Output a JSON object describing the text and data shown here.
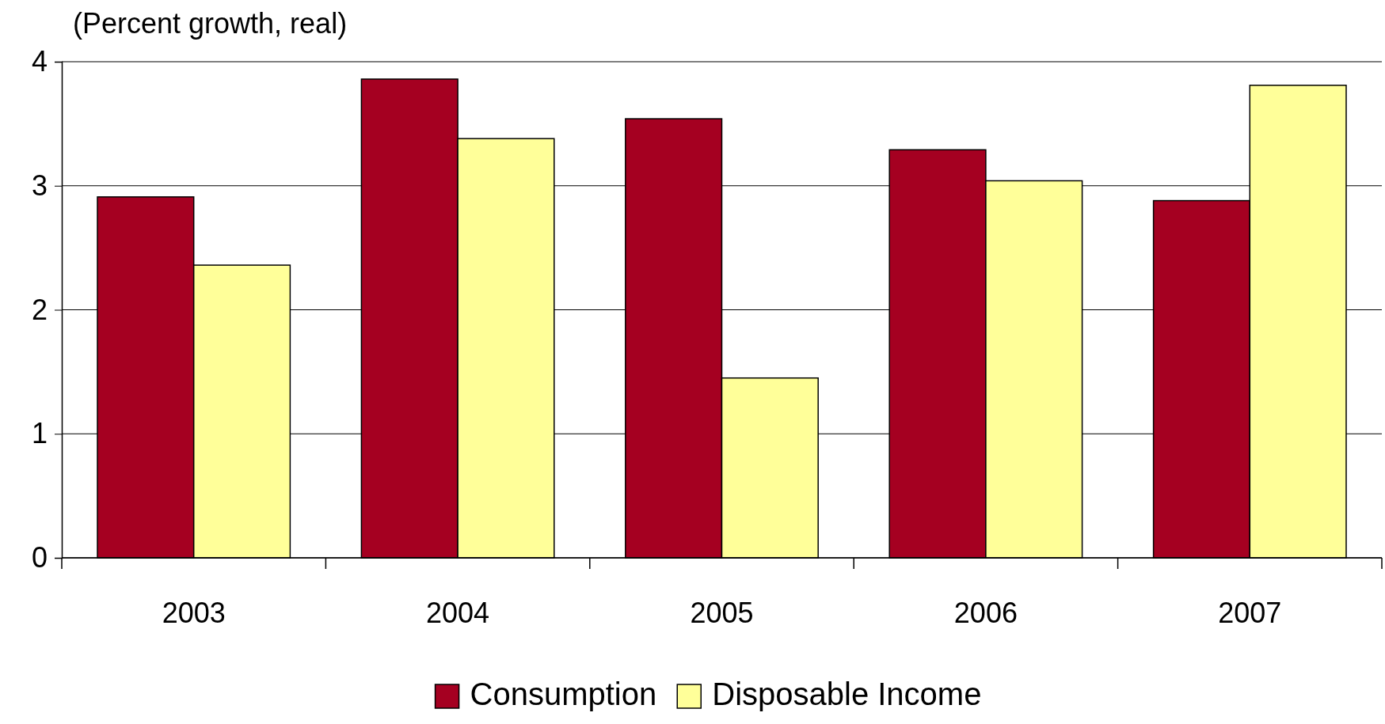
{
  "chart_data": {
    "type": "bar",
    "ylabel": "(Percent growth, real)",
    "categories": [
      "2003",
      "2004",
      "2005",
      "2006",
      "2007"
    ],
    "series": [
      {
        "name": "Consumption",
        "color": "#a50021",
        "values": [
          2.91,
          3.86,
          3.54,
          3.29,
          2.88
        ]
      },
      {
        "name": "Disposable Income",
        "color": "#ffff99",
        "values": [
          2.36,
          3.38,
          1.45,
          3.04,
          3.81
        ]
      }
    ],
    "ylim": [
      0,
      4
    ],
    "yticks": [
      0,
      1,
      2,
      3,
      4
    ],
    "grid": "y",
    "legend": "bottom"
  }
}
